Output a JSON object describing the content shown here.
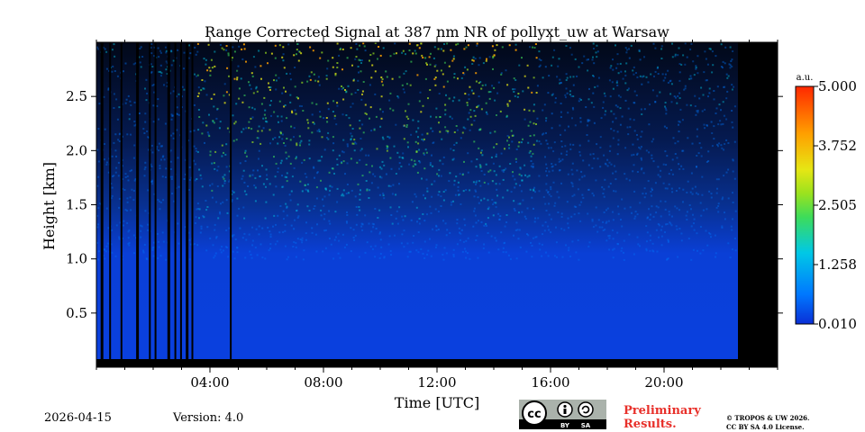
{
  "chart_data": {
    "type": "heatmap",
    "title": "Range Corrected Signal at 387 nm NR of pollyxt_uw at Warsaw",
    "xlabel": "Time [UTC]",
    "ylabel": "Height [km]",
    "xlim": [
      0,
      24
    ],
    "ylim": [
      0,
      3.0
    ],
    "x_ticks": [
      {
        "value": 4,
        "label": "04:00"
      },
      {
        "value": 8,
        "label": "08:00"
      },
      {
        "value": 12,
        "label": "12:00"
      },
      {
        "value": 16,
        "label": "16:00"
      },
      {
        "value": 20,
        "label": "20:00"
      }
    ],
    "y_ticks": [
      {
        "value": 0.5,
        "label": "0.5"
      },
      {
        "value": 1.0,
        "label": "1.0"
      },
      {
        "value": 1.5,
        "label": "1.5"
      },
      {
        "value": 2.0,
        "label": "2.0"
      },
      {
        "value": 2.5,
        "label": "2.5"
      }
    ],
    "colorbar": {
      "unit": "a.u.",
      "min": 0.01,
      "max": 5.0,
      "ticks": [
        {
          "value": 0.01,
          "label": "0.010"
        },
        {
          "value": 1.258,
          "label": "1.258"
        },
        {
          "value": 2.505,
          "label": "2.505"
        },
        {
          "value": 3.752,
          "label": "3.752"
        },
        {
          "value": 5.0,
          "label": "5.000"
        }
      ],
      "colormap": "jet"
    },
    "data_coverage_hours": [
      0,
      22.5
    ],
    "no_data_color": "#000000"
  },
  "footer": {
    "date": "2026-04-15",
    "version": "Version: 4.0",
    "preliminary_line1": "Preliminary",
    "preliminary_line2": "Results.",
    "copyright_line1": "© TROPOS & UW 2026.",
    "copyright_line2": "CC BY SA 4.0 License.",
    "license_badge": {
      "cc": "cc",
      "by": "BY",
      "sa": "SA"
    }
  },
  "colors": {
    "preliminary": "#e8302a",
    "background": "#ffffff"
  }
}
